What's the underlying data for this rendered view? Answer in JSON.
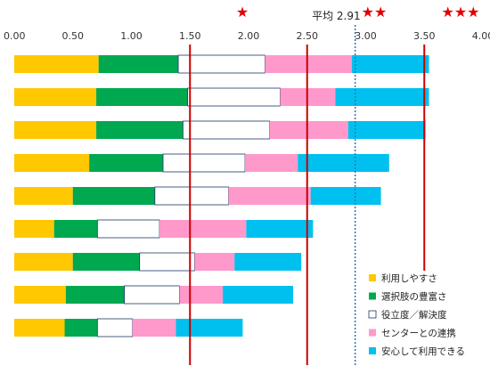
{
  "chart_data": {
    "type": "bar",
    "orientation": "horizontal",
    "stacked": true,
    "xlim": [
      0,
      4
    ],
    "x_ticks": [
      "0.00",
      "0.50",
      "1.00",
      "1.50",
      "2.00",
      "2.50",
      "3.00",
      "3.50",
      "4.00"
    ],
    "grid": false,
    "legend_position": "bottom-right",
    "series": [
      {
        "name": "利用しやすさ",
        "color": "#FFC800",
        "values": [
          0.72,
          0.7,
          0.7,
          0.64,
          0.5,
          0.34,
          0.5,
          0.44,
          0.43
        ]
      },
      {
        "name": "選択肢の豊富さ",
        "color": "#00A850",
        "values": [
          0.68,
          0.78,
          0.74,
          0.63,
          0.7,
          0.37,
          0.57,
          0.5,
          0.28
        ]
      },
      {
        "name": "役立度／解決度",
        "color": "#FFFFFF",
        "values": [
          0.74,
          0.79,
          0.74,
          0.7,
          0.63,
          0.53,
          0.47,
          0.47,
          0.3
        ]
      },
      {
        "name": "センターとの連携",
        "color": "#FF99CC",
        "values": [
          0.74,
          0.47,
          0.67,
          0.45,
          0.7,
          0.74,
          0.34,
          0.37,
          0.37
        ]
      },
      {
        "name": "安心して利用できる",
        "color": "#00C0F0",
        "values": [
          0.66,
          0.8,
          0.66,
          0.78,
          0.6,
          0.57,
          0.57,
          0.6,
          0.57
        ]
      }
    ],
    "reference_lines": [
      {
        "value": 1.5,
        "style": "solid",
        "color": "#CC0000"
      },
      {
        "value": 2.5,
        "style": "solid",
        "color": "#CC0000"
      },
      {
        "value": 3.5,
        "style": "solid",
        "color": "#CC0000"
      },
      {
        "value": 2.91,
        "style": "dotted",
        "color": "#2E75B6"
      }
    ],
    "annotations": [
      {
        "text": "平均 2.91",
        "x": 2.91
      },
      {
        "text": "★",
        "x": 2.0,
        "color": "#E00000"
      },
      {
        "text": "★★",
        "x": 3.0,
        "color": "#E00000"
      },
      {
        "text": "★★★",
        "x": 3.95,
        "color": "#E00000"
      }
    ]
  }
}
